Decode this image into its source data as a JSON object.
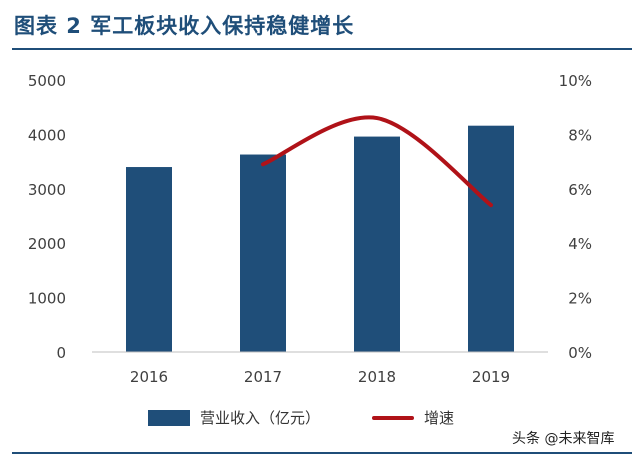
{
  "figure": {
    "title": "图表 2   军工板块收入保持稳健增长",
    "watermark": "头条 @未来智库"
  },
  "chart_data": {
    "type": "bar",
    "categories": [
      "2016",
      "2017",
      "2018",
      "2019"
    ],
    "series": [
      {
        "name": "营业收入（亿元）",
        "type": "bar",
        "axis": "left",
        "color": "#1f4e79",
        "values": [
          3400,
          3630,
          3960,
          4160
        ]
      },
      {
        "name": "增速",
        "type": "line",
        "axis": "right",
        "color": "#b01218",
        "values": [
          null,
          6.9,
          8.6,
          5.4
        ],
        "unit": "%"
      }
    ],
    "ylim": [
      0,
      5000
    ],
    "y_ticks": [
      "0",
      "1000",
      "2000",
      "3000",
      "4000",
      "5000"
    ],
    "y2lim": [
      0,
      10
    ],
    "y2_ticks": [
      "0%",
      "2%",
      "4%",
      "6%",
      "8%",
      "10%"
    ],
    "grid": false,
    "legend_position": "bottom"
  }
}
